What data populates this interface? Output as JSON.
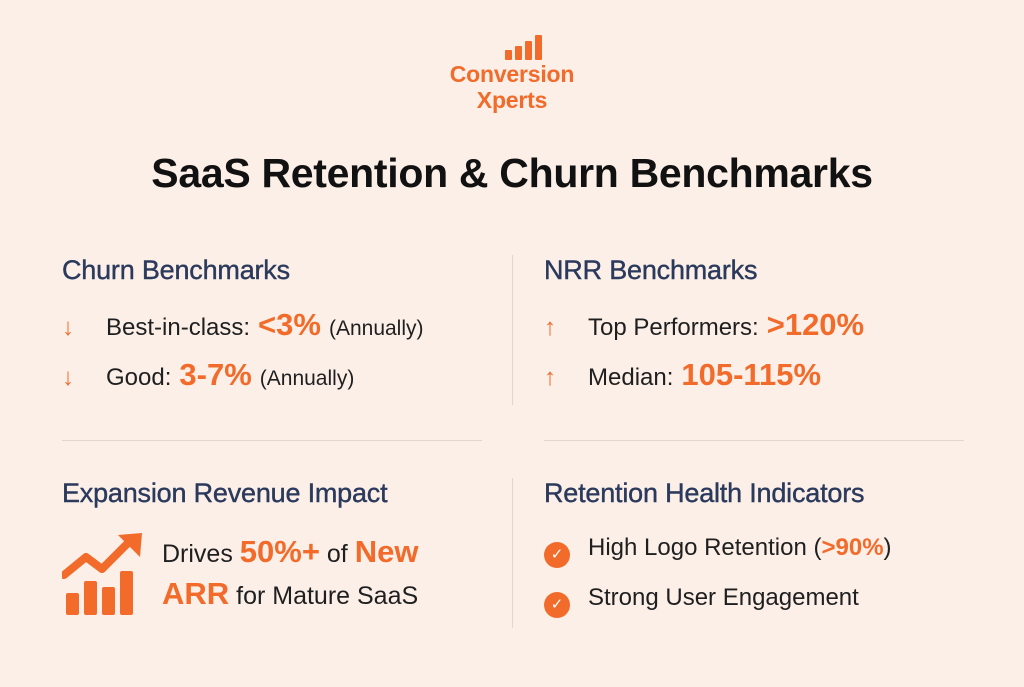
{
  "logo": {
    "line1": "Conversion",
    "line2": "Xperts",
    "bars_icon": "bar-chart-icon"
  },
  "title": "SaaS Retention & Churn Benchmarks",
  "churn": {
    "heading": "Churn Benchmarks",
    "items": [
      {
        "label": "Best-in-class:",
        "value": "<3%",
        "note": "(Annually)",
        "icon": "arrow-down-icon"
      },
      {
        "label": "Good:",
        "value": "3-7%",
        "note": "(Annually)",
        "icon": "arrow-down-icon"
      }
    ]
  },
  "nrr": {
    "heading": "NRR Benchmarks",
    "items": [
      {
        "label": "Top Performers:",
        "value": ">120%",
        "icon": "arrow-up-icon"
      },
      {
        "label": "Median:",
        "value": "105-115%",
        "icon": "arrow-up-icon"
      }
    ]
  },
  "expansion": {
    "heading": "Expansion Revenue Impact",
    "icon": "growth-chart-icon",
    "text_pre": "Drives",
    "value": "50%+",
    "text_mid": "of",
    "highlight2a": "New",
    "highlight2b": "ARR",
    "text_post": "for Mature SaaS"
  },
  "health": {
    "heading": "Retention Health Indicators",
    "items": [
      {
        "pre": "High Logo Retention (",
        "value": ">90%",
        "post": ")",
        "icon": "check-circle-icon"
      },
      {
        "pre": "Strong User Engagement",
        "value": "",
        "post": "",
        "icon": "check-circle-icon"
      }
    ]
  },
  "colors": {
    "accent": "#f26b2a",
    "heading": "#2b3a5c",
    "background": "#fbefe8"
  }
}
